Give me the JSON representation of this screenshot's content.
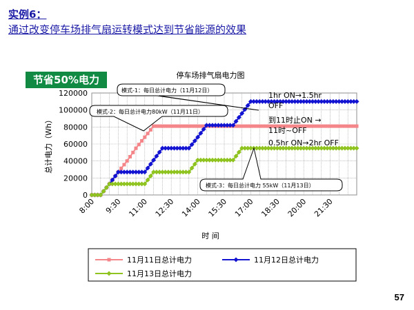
{
  "slide": {
    "title_line1": "实例6：",
    "title_line2": "通过改变停车场排气扇运转模式达到节省能源的效果",
    "badge": "节省50%电力",
    "page_number": "57"
  },
  "chart_data": {
    "type": "line",
    "title": "停车场排气扇电力图",
    "xlabel": "时 间",
    "ylabel": "总计电力（Wh）",
    "ylim": [
      0,
      120000
    ],
    "yticks": [
      0,
      20000,
      40000,
      60000,
      80000,
      100000,
      120000
    ],
    "xlim": [
      "8:00",
      "23:00"
    ],
    "xtick_labels": [
      "8:00",
      "9:30",
      "11:00",
      "12:30",
      "14:00",
      "15:30",
      "17:00",
      "18:30",
      "20:00",
      "21:30"
    ],
    "grid": true,
    "legend_position": "bottom",
    "series": [
      {
        "name": "11月11日总计电力",
        "color": "#f4868a",
        "marker": "square",
        "points": [
          [
            "8:00",
            0
          ],
          [
            "8:30",
            0
          ],
          [
            "9:00",
            13000
          ],
          [
            "9:30",
            27000
          ],
          [
            "10:00",
            40000
          ],
          [
            "10:30",
            55000
          ],
          [
            "11:00",
            68000
          ],
          [
            "11:30",
            81000
          ],
          [
            "12:00",
            81000
          ],
          [
            "12:30",
            81000
          ],
          [
            "13:00",
            81000
          ],
          [
            "13:30",
            81000
          ],
          [
            "14:00",
            81000
          ],
          [
            "14:30",
            81000
          ],
          [
            "15:00",
            81000
          ],
          [
            "15:30",
            81000
          ],
          [
            "16:00",
            81000
          ],
          [
            "16:30",
            81000
          ],
          [
            "17:00",
            81000
          ],
          [
            "17:30",
            81000
          ],
          [
            "18:00",
            81000
          ],
          [
            "18:30",
            81000
          ],
          [
            "19:00",
            81000
          ],
          [
            "19:30",
            81000
          ],
          [
            "20:00",
            81000
          ],
          [
            "20:30",
            81000
          ],
          [
            "21:00",
            81000
          ],
          [
            "21:30",
            81000
          ],
          [
            "22:00",
            81000
          ],
          [
            "22:30",
            81000
          ],
          [
            "23:00",
            81000
          ]
        ]
      },
      {
        "name": "11月12日总计电力",
        "color": "#1313d2",
        "marker": "diamond",
        "points": [
          [
            "8:00",
            0
          ],
          [
            "8:30",
            0
          ],
          [
            "9:00",
            13000
          ],
          [
            "9:30",
            27000
          ],
          [
            "10:00",
            27000
          ],
          [
            "10:30",
            27000
          ],
          [
            "11:00",
            27000
          ],
          [
            "11:30",
            41000
          ],
          [
            "12:00",
            55000
          ],
          [
            "12:30",
            55000
          ],
          [
            "13:00",
            55000
          ],
          [
            "13:30",
            55000
          ],
          [
            "14:00",
            68000
          ],
          [
            "14:30",
            82000
          ],
          [
            "15:00",
            82000
          ],
          [
            "15:30",
            82000
          ],
          [
            "16:00",
            82000
          ],
          [
            "16:30",
            96000
          ],
          [
            "17:00",
            110000
          ],
          [
            "17:30",
            110000
          ],
          [
            "18:00",
            110000
          ],
          [
            "18:30",
            110000
          ],
          [
            "19:00",
            110000
          ],
          [
            "19:30",
            110000
          ],
          [
            "20:00",
            110000
          ],
          [
            "20:30",
            110000
          ],
          [
            "21:00",
            110000
          ],
          [
            "21:30",
            110000
          ],
          [
            "22:00",
            110000
          ],
          [
            "22:30",
            110000
          ],
          [
            "23:00",
            110000
          ]
        ]
      },
      {
        "name": "11月13日总计电力",
        "color": "#8fc31f",
        "marker": "diamond",
        "points": [
          [
            "8:00",
            0
          ],
          [
            "8:30",
            0
          ],
          [
            "9:00",
            13000
          ],
          [
            "9:30",
            13000
          ],
          [
            "10:00",
            13000
          ],
          [
            "10:30",
            13000
          ],
          [
            "11:00",
            13000
          ],
          [
            "11:30",
            27000
          ],
          [
            "12:00",
            27000
          ],
          [
            "12:30",
            27000
          ],
          [
            "13:00",
            27000
          ],
          [
            "13:30",
            27000
          ],
          [
            "14:00",
            41000
          ],
          [
            "14:30",
            41000
          ],
          [
            "15:00",
            41000
          ],
          [
            "15:30",
            41000
          ],
          [
            "16:00",
            41000
          ],
          [
            "16:30",
            55000
          ],
          [
            "17:00",
            55000
          ],
          [
            "17:30",
            55000
          ],
          [
            "18:00",
            55000
          ],
          [
            "18:30",
            55000
          ],
          [
            "19:00",
            55000
          ],
          [
            "19:30",
            55000
          ],
          [
            "20:00",
            55000
          ],
          [
            "20:30",
            55000
          ],
          [
            "21:00",
            55000
          ],
          [
            "21:30",
            55000
          ],
          [
            "22:00",
            55000
          ],
          [
            "22:30",
            55000
          ],
          [
            "23:00",
            55000
          ]
        ]
      }
    ],
    "annotations": {
      "callout_mode1": "模式-1：每日总计电力（11月12日）",
      "callout_mode2": "模式-2：每日总计电力80kW（11月11日）",
      "callout_mode3": "模式-3：每日总计电力 55kW（11月13日）",
      "note_line1": "1hr ON→1.5hr",
      "note_line2": "OFF",
      "note_line3": "到11时止ON →",
      "note_line4": "11时~OFF",
      "note_line5": "0.5hr ON→2hr OFF"
    }
  }
}
